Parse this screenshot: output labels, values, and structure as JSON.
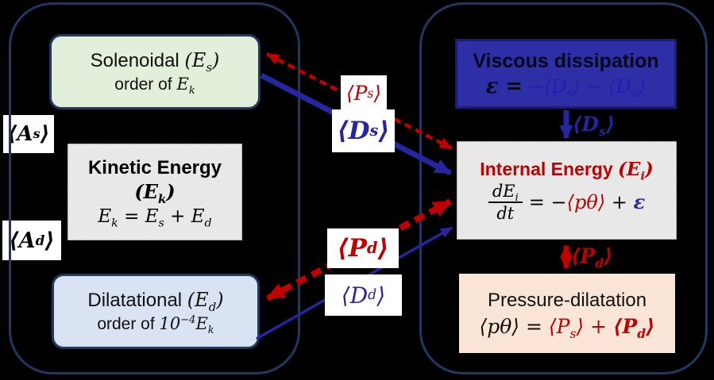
{
  "colors": {
    "background": "#000000",
    "panel-border": "#1f3864",
    "red": "#c00000",
    "blue": "#2626a0",
    "solenoidal-fill": "#e2efda",
    "dilatational-fill": "#dae3f3",
    "gray-fill": "#e9e8e8",
    "viscous-fill": "#2e2ea6",
    "viscous-border": "#1c1c78",
    "viscous-formula": "#1f1fb8",
    "pressure-fill": "#fbe5d6",
    "label-bg": "#ffffff"
  },
  "left_panel": {
    "solenoidal": {
      "name": "Solenoidal",
      "symbol": "(E_s)",
      "order_prefix": "order of",
      "order_symbol": "E_k"
    },
    "kinetic_energy": {
      "title": "Kinetic Energy",
      "symbol": "(E_k)",
      "equation": "E_k = E_s + E_d"
    },
    "dilatational": {
      "name": "Dilatational",
      "symbol": "(E_d)",
      "order_prefix": "order of",
      "order_symbol": "10^{−4}E_k"
    },
    "advection_labels": {
      "as": "⟨A_s⟩",
      "ad": "⟨A_d⟩"
    }
  },
  "right_panel": {
    "viscous_dissipation": {
      "title": "Viscous dissipation",
      "eq_lhs": "ε =",
      "eq_rhs": "−⟨D_s⟩ − ⟨D_d⟩"
    },
    "internal_energy": {
      "title": "Internal Energy",
      "symbol": "(E_i)",
      "frac_num": "dE_i",
      "frac_den": "dt",
      "eq_mid": "= −",
      "eq_ptheta": "⟨pθ⟩",
      "eq_plus": "+",
      "eq_eps": "ε"
    },
    "pressure_dilatation": {
      "title": "Pressure-dilatation",
      "eq_lhs": "⟨pθ⟩ =",
      "eq_ps": "⟨P_s⟩",
      "eq_plus": "+",
      "eq_pd": "⟨P_d⟩"
    }
  },
  "flux_labels": {
    "ps": "⟨P_s⟩",
    "ds": "⟨D_s⟩",
    "pd": "⟨P_d⟩",
    "dd": "⟨D_d⟩",
    "ds_internal": "⟨D_s⟩",
    "pd_internal": "⟨P_d⟩"
  }
}
